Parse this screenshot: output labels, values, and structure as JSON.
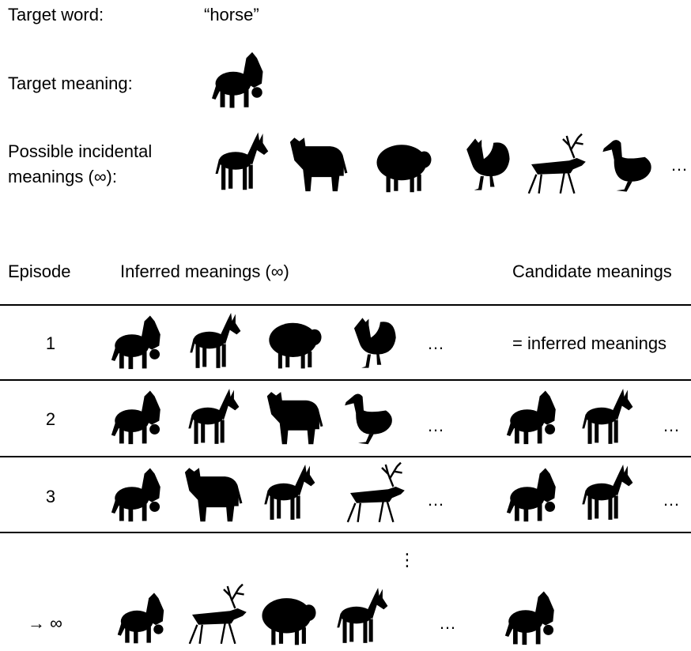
{
  "header": {
    "target_word_label": "Target word:",
    "target_word": "“horse”",
    "target_meaning_label": "Target meaning:",
    "incidental_label": [
      "Possible incidental",
      "meanings (∞):"
    ],
    "incidental_ellipsis": "…"
  },
  "table": {
    "columns": [
      "Episode",
      "Inferred meanings (∞)",
      "Candidate meanings"
    ],
    "rows": [
      {
        "episode": "1",
        "inferred_ellipsis": "…",
        "candidate": "= inferred meanings"
      },
      {
        "episode": "2",
        "inferred_ellipsis": "…",
        "candidate_ellipsis": "…"
      },
      {
        "episode": "3",
        "inferred_ellipsis": "…",
        "candidate_ellipsis": "…"
      }
    ],
    "vertical_ellipsis": "⋮",
    "limit_row": {
      "episode": "→ ∞",
      "inferred_ellipsis": "…"
    }
  }
}
